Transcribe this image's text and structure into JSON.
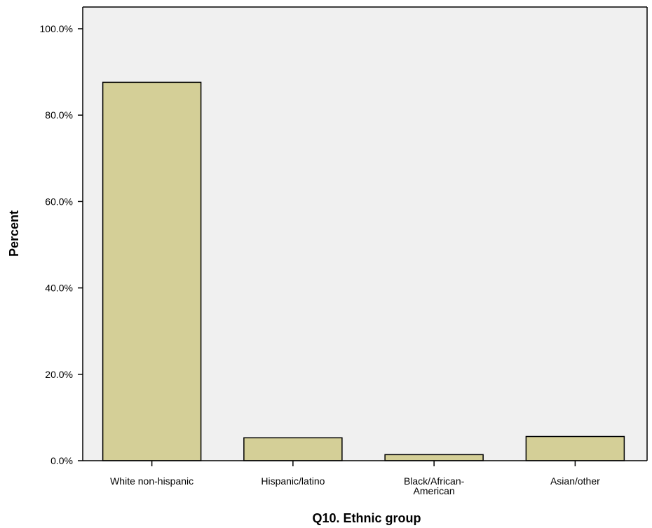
{
  "chart_data": {
    "type": "bar",
    "categories": [
      "White non-hispanic",
      "Hispanic/latino",
      "Black/African-American",
      "Asian/other"
    ],
    "category_label_lines": [
      [
        "White non-hispanic"
      ],
      [
        "Hispanic/latino"
      ],
      [
        "Black/African-",
        "American"
      ],
      [
        "Asian/other"
      ]
    ],
    "values": [
      87.6,
      5.3,
      1.4,
      5.6
    ],
    "xlabel": "Q10. Ethnic group",
    "ylabel": "Percent",
    "ylim": [
      0,
      100
    ],
    "yticks": [
      0,
      20,
      40,
      60,
      80,
      100
    ],
    "ytick_labels": [
      "0.0%",
      "20.0%",
      "40.0%",
      "60.0%",
      "80.0%",
      "100.0%"
    ],
    "grid": false,
    "colors": {
      "bar_fill": "#d4cf97",
      "bar_stroke": "#000000",
      "plot_background": "#f0f0f0"
    }
  }
}
